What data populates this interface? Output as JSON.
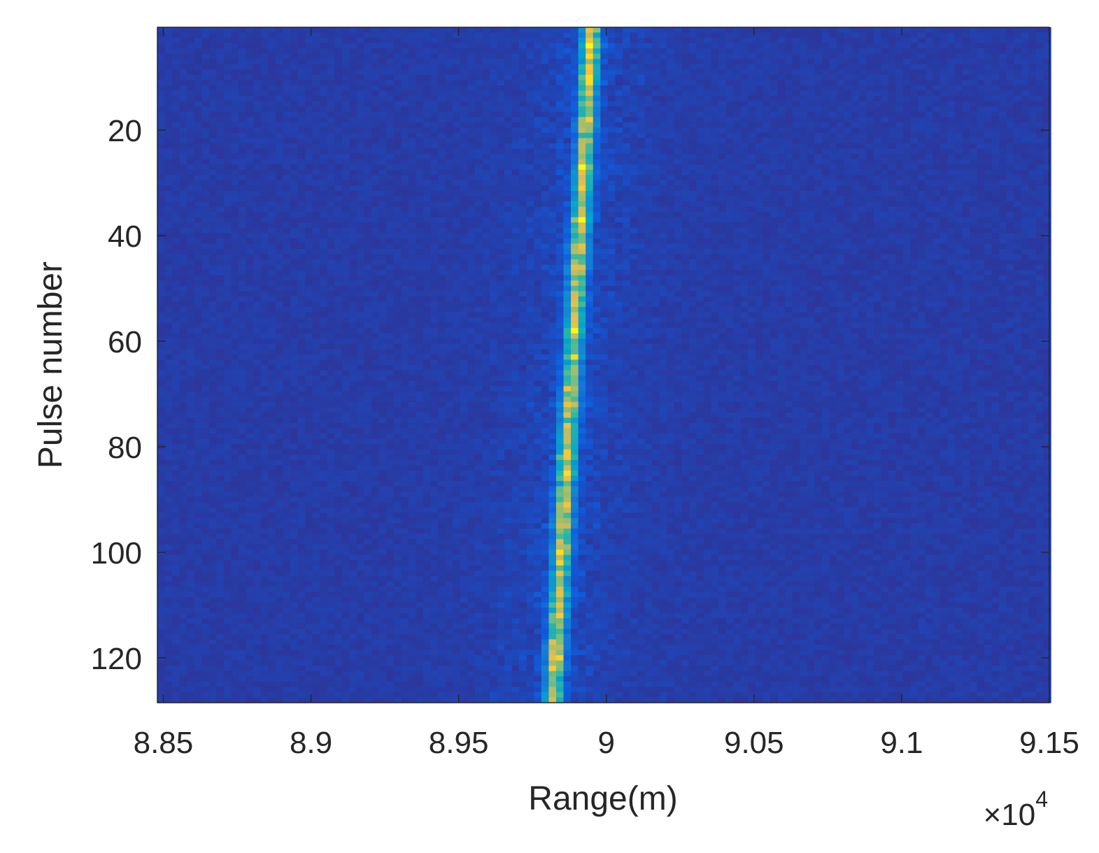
{
  "chart_data": {
    "type": "heatmap",
    "title": "",
    "xlabel": "Range(m)",
    "ylabel": "Pulse number",
    "x_multiplier_label": {
      "base": "×10",
      "exponent": "4"
    },
    "xlim": [
      88480,
      91500
    ],
    "ylim": [
      128.5,
      0.5
    ],
    "y_reversed": true,
    "x_ticks": [
      {
        "value": 88500,
        "label": "8.85"
      },
      {
        "value": 89000,
        "label": "8.9"
      },
      {
        "value": 89500,
        "label": "8.95"
      },
      {
        "value": 90000,
        "label": "9"
      },
      {
        "value": 90500,
        "label": "9.05"
      },
      {
        "value": 91000,
        "label": "9.1"
      },
      {
        "value": 91500,
        "label": "9.15"
      }
    ],
    "y_ticks": [
      {
        "value": 20,
        "label": "20"
      },
      {
        "value": 40,
        "label": "40"
      },
      {
        "value": 60,
        "label": "60"
      },
      {
        "value": 80,
        "label": "80"
      },
      {
        "value": 100,
        "label": "100"
      },
      {
        "value": 120,
        "label": "120"
      }
    ],
    "pulses": 128,
    "range_bin_width_m": 25,
    "colormap": [
      "#352a87",
      "#0f5cdd",
      "#1481d6",
      "#06a4ca",
      "#2eb7a4",
      "#87bf77",
      "#d1bb59",
      "#fec832",
      "#f9fb0e"
    ],
    "target_track": {
      "range_at_pulse_1_m": 89950,
      "range_at_pulse_128_m": 89820
    },
    "value_range": [
      0,
      1
    ],
    "grid": false,
    "legend": "none"
  }
}
